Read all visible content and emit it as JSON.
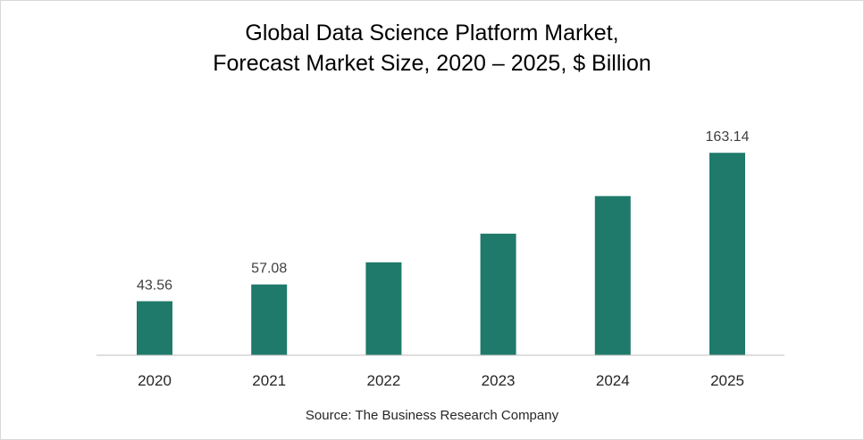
{
  "title_line1": "Global Data Science Platform Market,",
  "title_line2": "Forecast Market Size, 2020 – 2025, $ Billion",
  "source": "Source: The Business Research Company",
  "colors": {
    "bar": "#1f7a6b",
    "axis": "#bfbfbf"
  },
  "chart_data": {
    "type": "bar",
    "title": "Global Data Science Platform Market, Forecast Market Size, 2020 – 2025, $ Billion",
    "xlabel": "",
    "ylabel": "",
    "categories": [
      "2020",
      "2021",
      "2022",
      "2023",
      "2024",
      "2025"
    ],
    "values": [
      43.56,
      57.08,
      74.8,
      98.0,
      128.3,
      163.14
    ],
    "data_labels": [
      "43.56",
      "57.08",
      "",
      "",
      "",
      "163.14"
    ],
    "ylim": [
      0,
      190
    ],
    "grid": false,
    "legend": "none"
  }
}
